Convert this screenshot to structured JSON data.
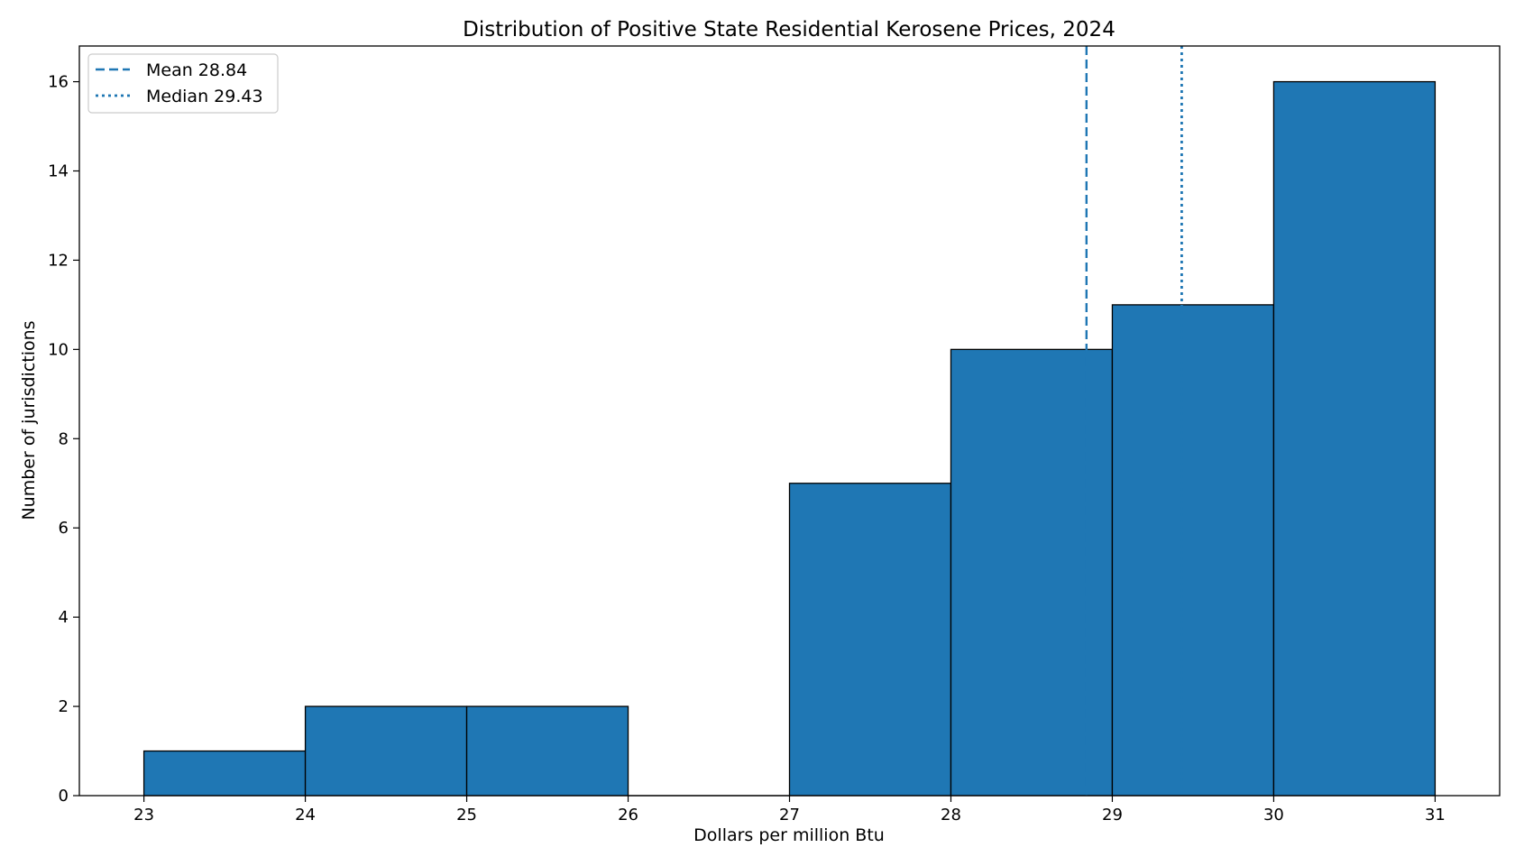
{
  "chart_data": {
    "type": "bar",
    "title": "Distribution of Positive State Residential Kerosene Prices, 2024",
    "xlabel": "Dollars per million Btu",
    "ylabel": "Number of jurisdictions",
    "bins": [
      {
        "start": 23,
        "end": 24,
        "count": 1
      },
      {
        "start": 24,
        "end": 25,
        "count": 2
      },
      {
        "start": 25,
        "end": 26,
        "count": 2
      },
      {
        "start": 26,
        "end": 27,
        "count": 0
      },
      {
        "start": 27,
        "end": 28,
        "count": 7
      },
      {
        "start": 28,
        "end": 29,
        "count": 10
      },
      {
        "start": 29,
        "end": 30,
        "count": 11
      },
      {
        "start": 30,
        "end": 31,
        "count": 16
      }
    ],
    "xlim": [
      22.6,
      31.4
    ],
    "ylim": [
      0,
      16.8
    ],
    "xticks": [
      23,
      24,
      25,
      26,
      27,
      28,
      29,
      30,
      31
    ],
    "yticks": [
      0,
      2,
      4,
      6,
      8,
      10,
      12,
      14,
      16
    ],
    "reference_lines": [
      {
        "name": "Mean 28.84",
        "value": 28.84,
        "style": "dashed"
      },
      {
        "name": "Median 29.43",
        "value": 29.43,
        "style": "dotted"
      }
    ],
    "legend_position": "top-left",
    "grid": false,
    "colors": {
      "bar_fill": "#1f77b4",
      "bar_edge": "#000000",
      "line": "#1f77b4"
    }
  }
}
